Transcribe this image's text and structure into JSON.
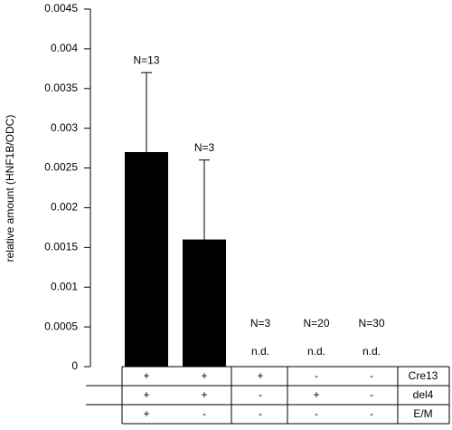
{
  "chart_data": {
    "type": "bar",
    "y_label": "relative amount (HNF1B/ODC)",
    "values": [
      0.0027,
      0.0016,
      null,
      null,
      null
    ],
    "errors": [
      0.001,
      0.001,
      null,
      null,
      null
    ],
    "value_labels": [
      null,
      null,
      "n.d.",
      "n.d.",
      "n.d."
    ],
    "annotations": [
      "N=13",
      "N=3",
      "N=3",
      "N=20",
      "N=30"
    ],
    "color": "#000000",
    "ylim": [
      0,
      0.0045
    ],
    "yticks": [
      0,
      0.0005,
      0.001,
      0.0015,
      0.002,
      0.0025,
      0.003,
      0.0035,
      0.004,
      0.0045
    ],
    "conditions": [
      {
        "label": "Cre13",
        "cells": [
          "+",
          "+",
          "+",
          "-",
          "-"
        ]
      },
      {
        "label": "del4",
        "cells": [
          "+",
          "+",
          "-",
          "+",
          "-"
        ]
      },
      {
        "label": "E/M",
        "cells": [
          "+",
          "-",
          "-",
          "-",
          "-"
        ]
      }
    ]
  }
}
